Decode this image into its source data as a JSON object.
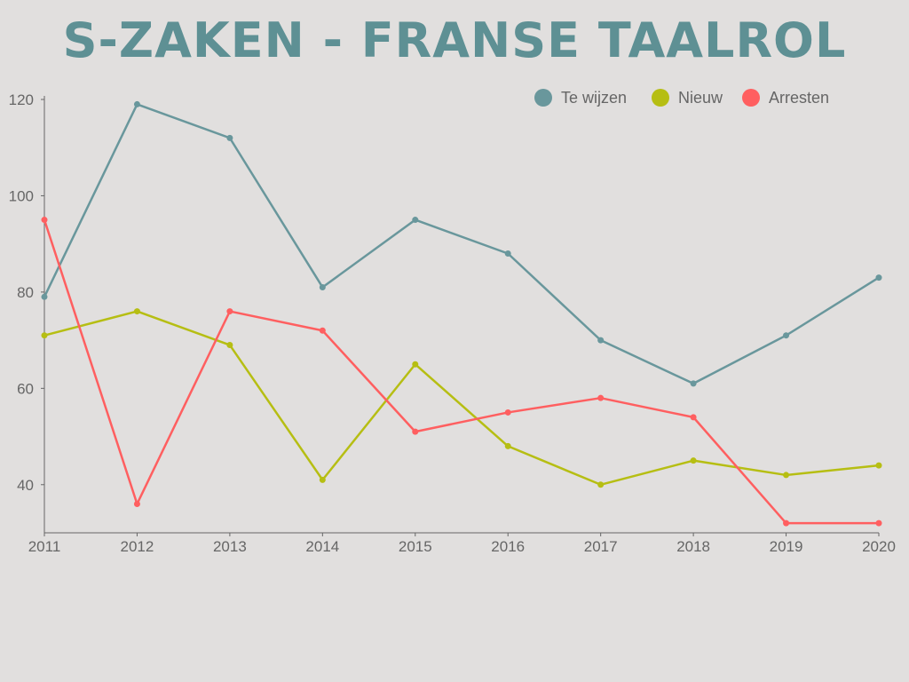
{
  "chart_data": {
    "type": "line",
    "title": "S-ZAKEN - FRANSE TAALROL",
    "xlabel": "",
    "ylabel": "",
    "x": [
      "2011",
      "2012",
      "2013",
      "2014",
      "2015",
      "2016",
      "2017",
      "2018",
      "2019",
      "2020"
    ],
    "yticks": [
      40,
      60,
      80,
      100,
      120
    ],
    "ylim": [
      30,
      120
    ],
    "grid": false,
    "legend_position": "top-right",
    "series": [
      {
        "name": "Te wijzen",
        "color": "#69979c",
        "values": [
          79,
          119,
          112,
          81,
          95,
          88,
          70,
          61,
          71,
          83
        ]
      },
      {
        "name": "Nieuw",
        "color": "#b6be13",
        "values": [
          71,
          76,
          69,
          41,
          65,
          48,
          40,
          45,
          42,
          44
        ]
      },
      {
        "name": "Arresten",
        "color": "#ff5f60",
        "values": [
          95,
          36,
          76,
          72,
          51,
          55,
          58,
          54,
          32,
          32
        ]
      }
    ]
  }
}
